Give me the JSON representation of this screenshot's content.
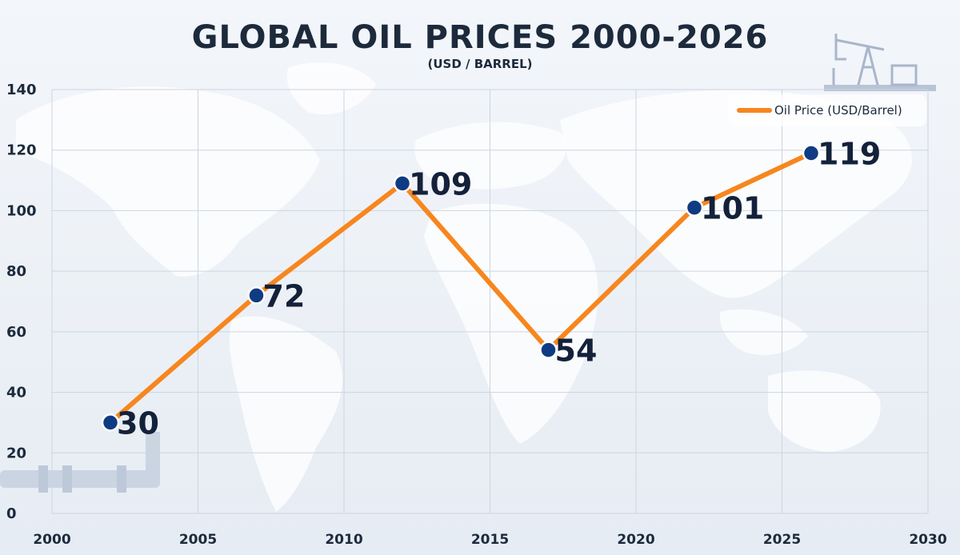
{
  "chart_data": {
    "type": "line",
    "title": "GLOBAL OIL PRICES 2000-2026",
    "subtitle": "(USD / BARREL)",
    "xlabel": "",
    "ylabel": "",
    "xlim": [
      2000,
      2030
    ],
    "ylim": [
      0,
      140
    ],
    "x_ticks": [
      "2000",
      "2005",
      "2010",
      "2015",
      "2020",
      "2025",
      "2030"
    ],
    "y_ticks": [
      "0",
      "20",
      "40",
      "60",
      "80",
      "100",
      "120",
      "140"
    ],
    "grid": true,
    "legend_position": "top-right",
    "series": [
      {
        "name": "Oil Price (USD/Barrel)",
        "color": "#f7861e",
        "marker_color": "#0f3b82",
        "points": [
          {
            "x": 2002,
            "y": 30
          },
          {
            "x": 2007,
            "y": 72
          },
          {
            "x": 2012,
            "y": 109
          },
          {
            "x": 2017,
            "y": 54
          },
          {
            "x": 2022,
            "y": 101
          },
          {
            "x": 2026,
            "y": 119
          }
        ],
        "labels": [
          "30",
          "72",
          "109",
          "54",
          "101",
          "119"
        ]
      }
    ]
  },
  "decorations": {
    "background_icon": "world-map",
    "top_right_icon": "oil-pumpjack-icon",
    "bottom_left_icon": "pipeline-icon"
  }
}
